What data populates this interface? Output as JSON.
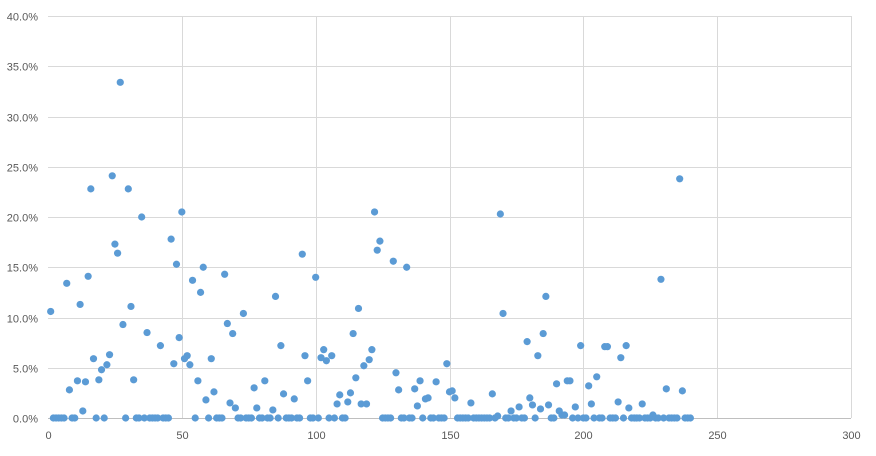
{
  "chart_data": {
    "type": "scatter",
    "title": "",
    "xlabel": "",
    "ylabel": "",
    "xlim": [
      0,
      300
    ],
    "ylim": [
      0,
      40
    ],
    "x_ticks": [
      0,
      50,
      100,
      150,
      200,
      250,
      300
    ],
    "x_tick_labels": [
      "0",
      "50",
      "100",
      "150",
      "200",
      "250",
      "300"
    ],
    "y_ticks": [
      0,
      5,
      10,
      15,
      20,
      25,
      30,
      35,
      40
    ],
    "y_tick_labels": [
      "0.0%",
      "5.0%",
      "10.0%",
      "15.0%",
      "20.0%",
      "25.0%",
      "30.0%",
      "35.0%",
      "40.0%"
    ],
    "y_unit": "percent",
    "grid": true,
    "legend": "none",
    "marker_color": "#5B9BD5",
    "series": [
      {
        "x_start": 1,
        "x_step": 1,
        "values": [
          10.6,
          0,
          0,
          0,
          0,
          0,
          13.4,
          2.8,
          0,
          0,
          3.7,
          11.3,
          0.7,
          3.6,
          14.1,
          22.8,
          5.9,
          0,
          3.8,
          4.8,
          0,
          5.3,
          6.3,
          24.1,
          17.3,
          16.4,
          33.4,
          9.3,
          0,
          22.8,
          11.1,
          3.8,
          0,
          0,
          20.0,
          0,
          8.5,
          0,
          0,
          0,
          0,
          7.2,
          0,
          0,
          0,
          17.8,
          5.4,
          15.3,
          8.0,
          20.5,
          5.9,
          6.2,
          5.3,
          13.7,
          0,
          3.7,
          12.5,
          15.0,
          1.8,
          0,
          5.9,
          2.6,
          0,
          0,
          0,
          14.3,
          9.4,
          1.5,
          8.4,
          1.0,
          0,
          0,
          10.4,
          0,
          0,
          0,
          3.0,
          1.0,
          0,
          0,
          3.7,
          0,
          0,
          0.8,
          12.1,
          0,
          7.2,
          2.4,
          0,
          0,
          0,
          1.9,
          0,
          0,
          16.3,
          6.2,
          3.7,
          0,
          0,
          14.0,
          0,
          6.0,
          6.8,
          5.7,
          0,
          6.2,
          0,
          1.4,
          2.3,
          0,
          0,
          1.6,
          2.5,
          8.4,
          4.0,
          10.9,
          1.4,
          5.2,
          1.4,
          5.8,
          6.8,
          20.5,
          16.7,
          17.6,
          0,
          0,
          0,
          0,
          15.6,
          4.5,
          2.8,
          0,
          0,
          15.0,
          0,
          0,
          2.9,
          1.2,
          3.7,
          0,
          1.9,
          2.0,
          0,
          0,
          3.6,
          0,
          0,
          0,
          5.4,
          2.6,
          2.7,
          2.0,
          0,
          0,
          0,
          0,
          0,
          1.5,
          0,
          0,
          0,
          0,
          0,
          0,
          0,
          2.4,
          0,
          0.2,
          20.3,
          10.4,
          0,
          0,
          0.7,
          0,
          0,
          1.1,
          0,
          0,
          7.6,
          2.0,
          1.3,
          0,
          6.2,
          0.9,
          8.4,
          12.1,
          1.3,
          0,
          0,
          3.4,
          0.7,
          0.3,
          0.3,
          3.7,
          3.7,
          0,
          1.1,
          0,
          7.2,
          0,
          0,
          3.2,
          1.4,
          0,
          4.1,
          0,
          0,
          7.1,
          7.1,
          0,
          0,
          0,
          1.6,
          6.0,
          0,
          7.2,
          1.0,
          0,
          0,
          0,
          0,
          1.4,
          0,
          0,
          0,
          0.3,
          0,
          0,
          13.8,
          0,
          2.9,
          0,
          0,
          0,
          0,
          23.8,
          2.7,
          0,
          0,
          0
        ]
      }
    ]
  }
}
